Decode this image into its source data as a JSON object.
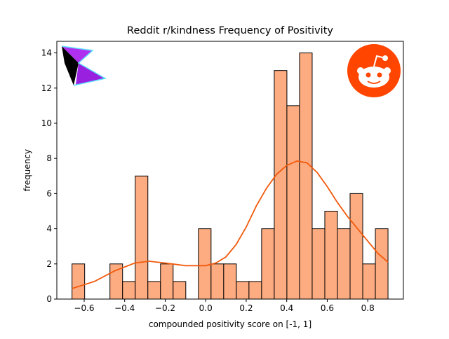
{
  "chart_data": {
    "type": "histogram",
    "title": "Reddit r/kindness Frequency of Positivity",
    "xlabel": "compounded positivity score on [-1, 1]",
    "ylabel": "frequency",
    "bins": [
      -0.66,
      -0.5976,
      -0.5352,
      -0.4728,
      -0.4104,
      -0.348,
      -0.2856,
      -0.2232,
      -0.1608,
      -0.0984,
      -0.036,
      0.0264,
      0.0888,
      0.1512,
      0.2136,
      0.276,
      0.3384,
      0.4008,
      0.4632,
      0.5256,
      0.588,
      0.6504,
      0.7128,
      0.7752,
      0.8376,
      0.9
    ],
    "values": [
      2,
      0,
      0,
      2,
      1,
      7,
      1,
      2,
      1,
      0,
      4,
      2,
      2,
      1,
      1,
      4,
      13,
      11,
      14,
      4,
      5,
      4,
      6,
      2,
      4
    ],
    "color": "#fdab80",
    "kde": {
      "color": "#f25a0c",
      "x": [
        -0.66,
        -0.55,
        -0.45,
        -0.35,
        -0.28,
        -0.2,
        -0.1,
        0.0,
        0.05,
        0.1,
        0.15,
        0.2,
        0.25,
        0.3,
        0.35,
        0.4,
        0.45,
        0.5,
        0.55,
        0.6,
        0.65,
        0.7,
        0.75,
        0.8,
        0.85,
        0.9
      ],
      "y": [
        0.6,
        1.0,
        1.6,
        2.05,
        2.15,
        2.05,
        1.9,
        1.9,
        2.05,
        2.4,
        3.1,
        4.1,
        5.3,
        6.3,
        7.1,
        7.6,
        7.85,
        7.75,
        7.2,
        6.4,
        5.5,
        4.7,
        4.0,
        3.3,
        2.6,
        2.1
      ]
    },
    "xlim": [
      -0.735,
      0.976
    ],
    "ylim": [
      0,
      14.66
    ],
    "xticks": [
      {
        "value": -0.6,
        "label": "−0.6"
      },
      {
        "value": -0.4,
        "label": "−0.4"
      },
      {
        "value": -0.2,
        "label": "−0.2"
      },
      {
        "value": 0,
        "label": "0.0"
      },
      0.2,
      0.4,
      0.6,
      0.8
    ],
    "yticks": [
      0,
      2,
      4,
      6,
      8,
      10,
      12,
      14
    ]
  }
}
